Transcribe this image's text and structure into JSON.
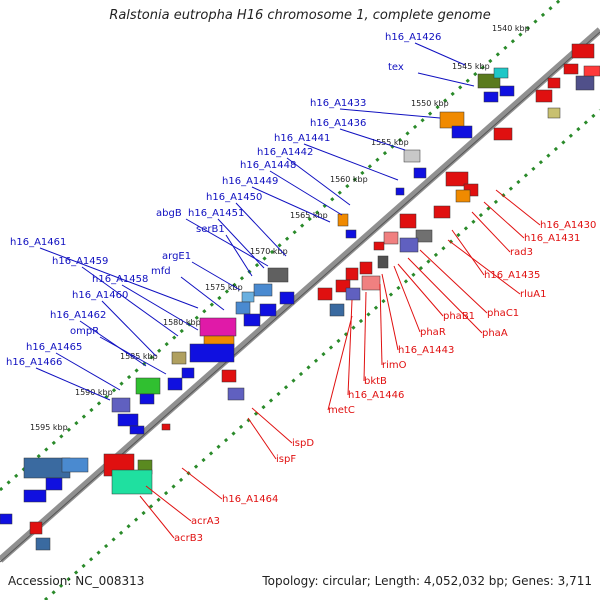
{
  "title": "Ralstonia eutropha H16 chromosome 1, complete genome",
  "footer": {
    "accession": "Accession: NC_008313",
    "summary": "Topology: circular; Length: 4,052,032 bp; Genes: 3,711"
  },
  "colors": {
    "forward_label": "#1010c0",
    "reverse_label": "#e01010",
    "backbone": "#909090",
    "dots": "#2a8a2a"
  },
  "scale_ticks": [
    "1540 kbp",
    "1545 kbp",
    "1550 kbp",
    "1555 kbp",
    "1560 kbp",
    "1565 kbp",
    "1570 kbp",
    "1575 kbp",
    "1580 kbp",
    "1585 kbp",
    "1590 kbp",
    "1595 kbp"
  ],
  "forward_genes": [
    "h16_A1426",
    "tex",
    "h16_A1433",
    "h16_A1436",
    "h16_A1441",
    "h16_A1442",
    "h16_A1448",
    "h16_A1449",
    "h16_A1450",
    "abgB",
    "h16_A1451",
    "serB1",
    "h16_A1461",
    "argE1",
    "h16_A1459",
    "mfd",
    "h16_A1458",
    "h16_A1460",
    "h16_A1462",
    "ompR",
    "h16_A1465",
    "h16_A1466"
  ],
  "reverse_genes": [
    "h16_A1430",
    "h16_A1431",
    "rad3",
    "h16_A1435",
    "rluA1",
    "phaC1",
    "phaA",
    "phaB1",
    "phaR",
    "h16_A1443",
    "rimO",
    "bktB",
    "h16_A1446",
    "metC",
    "ispD",
    "ispF",
    "h16_A1464",
    "acrA3",
    "acrB3"
  ]
}
